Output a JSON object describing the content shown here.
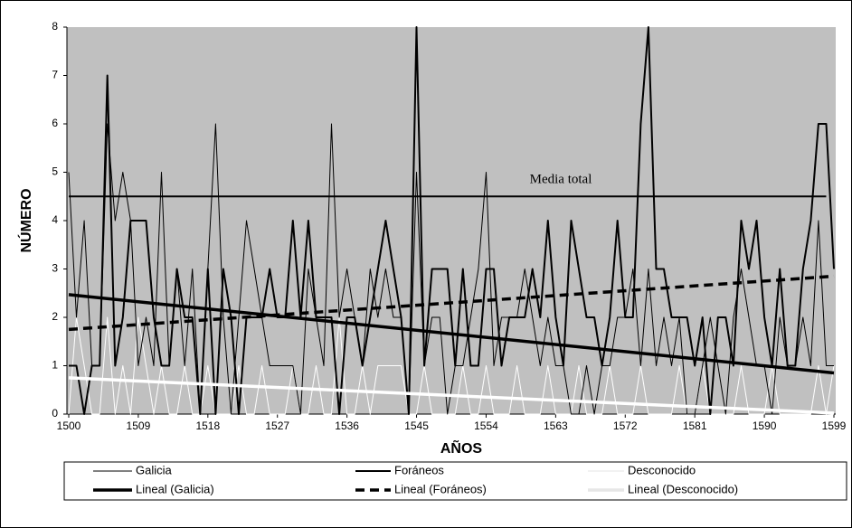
{
  "chart_data": {
    "type": "line",
    "xlabel": "AÑOS",
    "ylabel": "NÚMERO",
    "x": [
      1500,
      1501,
      1502,
      1503,
      1504,
      1505,
      1506,
      1507,
      1508,
      1509,
      1510,
      1511,
      1512,
      1513,
      1514,
      1515,
      1516,
      1517,
      1518,
      1519,
      1520,
      1521,
      1522,
      1523,
      1524,
      1525,
      1526,
      1527,
      1528,
      1529,
      1530,
      1531,
      1532,
      1533,
      1534,
      1535,
      1536,
      1537,
      1538,
      1539,
      1540,
      1541,
      1542,
      1543,
      1544,
      1545,
      1546,
      1547,
      1548,
      1549,
      1550,
      1551,
      1552,
      1553,
      1554,
      1555,
      1556,
      1557,
      1558,
      1559,
      1560,
      1561,
      1562,
      1563,
      1564,
      1565,
      1566,
      1567,
      1568,
      1569,
      1570,
      1571,
      1572,
      1573,
      1574,
      1575,
      1576,
      1577,
      1578,
      1579,
      1580,
      1581,
      1582,
      1583,
      1584,
      1585,
      1586,
      1587,
      1588,
      1589,
      1590,
      1591,
      1592,
      1593,
      1594,
      1595,
      1596,
      1597,
      1598,
      1599
    ],
    "series": [
      {
        "name": "Galicia",
        "color": "#000000",
        "width": 1,
        "values": [
          5,
          2,
          4,
          1,
          1,
          6,
          4,
          5,
          4,
          1,
          2,
          1,
          5,
          1,
          3,
          1,
          3,
          0,
          3,
          6,
          2,
          0,
          2,
          4,
          3,
          2,
          1,
          1,
          1,
          1,
          0,
          3,
          2,
          1,
          6,
          2,
          3,
          2,
          1,
          3,
          2,
          3,
          2,
          2,
          0,
          5,
          1,
          2,
          2,
          0,
          1,
          1,
          2,
          3,
          5,
          1,
          2,
          2,
          2,
          3,
          2,
          1,
          2,
          1,
          1,
          0,
          0,
          1,
          0,
          1,
          1,
          2,
          2,
          3,
          1,
          3,
          1,
          2,
          1,
          2,
          0,
          0,
          1,
          2,
          1,
          0,
          2,
          3,
          2,
          1,
          1,
          0,
          2,
          1,
          1,
          2,
          1,
          4,
          1,
          1
        ]
      },
      {
        "name": "Foráneos",
        "color": "#000000",
        "width": 2,
        "values": [
          1,
          1,
          0,
          1,
          1,
          7,
          1,
          2,
          4,
          4,
          4,
          2,
          1,
          1,
          3,
          2,
          2,
          0,
          3,
          0,
          3,
          2,
          0,
          2,
          2,
          2,
          3,
          2,
          2,
          4,
          2,
          4,
          2,
          2,
          2,
          0,
          2,
          2,
          1,
          2,
          3,
          4,
          3,
          2,
          0,
          8,
          1,
          3,
          3,
          3,
          1,
          3,
          1,
          1,
          3,
          3,
          1,
          2,
          2,
          2,
          3,
          2,
          4,
          2,
          1,
          4,
          3,
          2,
          2,
          1,
          2,
          4,
          2,
          2,
          6,
          8,
          3,
          3,
          2,
          2,
          2,
          1,
          2,
          0,
          2,
          2,
          1,
          4,
          3,
          4,
          2,
          1,
          3,
          1,
          1,
          3,
          4,
          6,
          6,
          3
        ]
      },
      {
        "name": "Desconocido",
        "color": "#ffffff",
        "width": 1,
        "values": [
          0,
          2,
          1,
          0,
          0,
          2,
          0,
          1,
          0,
          2,
          1,
          0,
          1,
          0,
          0,
          1,
          0,
          0,
          1,
          0,
          0,
          0,
          1,
          0,
          0,
          1,
          0,
          0,
          0,
          1,
          0,
          0,
          1,
          0,
          0,
          2,
          0,
          0,
          1,
          0,
          1,
          1,
          1,
          1,
          0,
          0,
          1,
          0,
          0,
          0,
          0,
          1,
          0,
          0,
          1,
          0,
          0,
          0,
          1,
          0,
          0,
          0,
          1,
          0,
          0,
          0,
          1,
          0,
          0,
          0,
          1,
          0,
          0,
          0,
          1,
          0,
          0,
          0,
          0,
          1,
          0,
          0,
          1,
          0,
          0,
          0,
          0,
          1,
          0,
          0,
          0,
          1,
          0,
          0,
          0,
          0,
          0,
          1,
          0,
          1
        ]
      },
      {
        "name": "Lineal (Galicia)",
        "color": "#000000",
        "width": 3.5,
        "x": [
          1500,
          1599
        ],
        "values": [
          2.47,
          0.85
        ]
      },
      {
        "name": "Lineal (Foráneos)",
        "color": "#000000",
        "width": 3.5,
        "dash": true,
        "x": [
          1500,
          1599
        ],
        "values": [
          1.75,
          2.85
        ]
      },
      {
        "name": "Lineal (Desconocido)",
        "color": "#ffffff",
        "width": 3.5,
        "x": [
          1500,
          1599
        ],
        "values": [
          0.75,
          0.02
        ]
      }
    ],
    "reference_line": {
      "label": "Media total",
      "value": 4.5,
      "x": [
        1500,
        1598
      ]
    },
    "xlim": [
      1500,
      1599
    ],
    "xticks": [
      1500,
      1509,
      1518,
      1527,
      1536,
      1545,
      1554,
      1563,
      1572,
      1581,
      1590,
      1599
    ],
    "ylim": [
      0,
      8
    ],
    "yticks": [
      0,
      1,
      2,
      3,
      4,
      5,
      6,
      7,
      8
    ],
    "plot_background": "#c0c0c0",
    "legend": "bottom"
  }
}
